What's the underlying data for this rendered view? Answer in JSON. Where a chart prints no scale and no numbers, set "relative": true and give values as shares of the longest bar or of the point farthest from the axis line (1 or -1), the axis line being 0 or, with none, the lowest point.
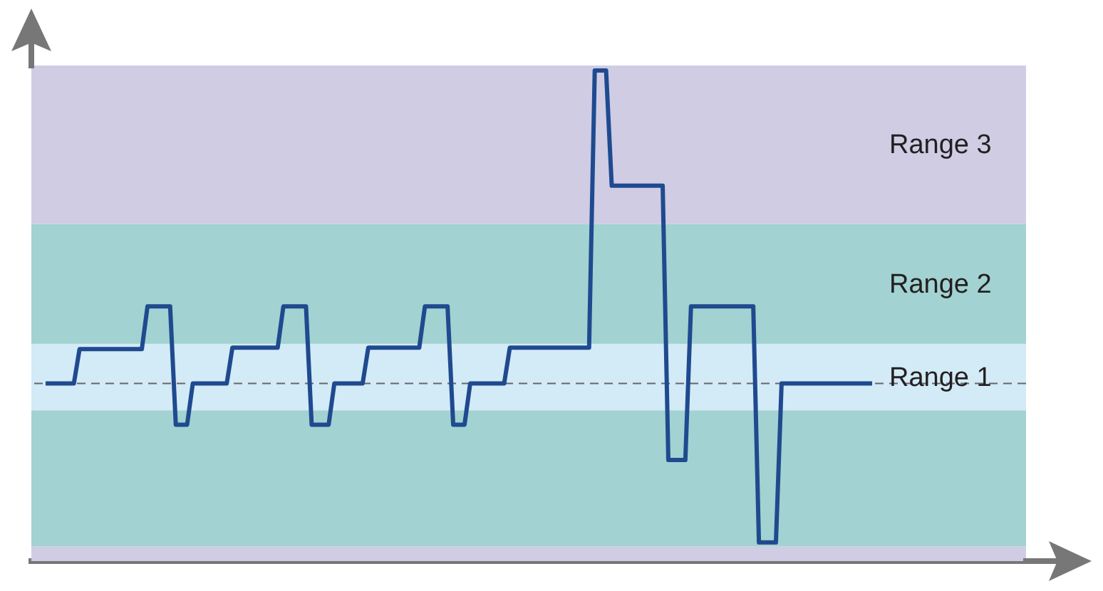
{
  "chart_data": {
    "type": "line",
    "relative": true,
    "categories": [
      null,
      null,
      null,
      null,
      null,
      null,
      null,
      null,
      null,
      null,
      null,
      null,
      null,
      null,
      null,
      null,
      null,
      null,
      null,
      null,
      null,
      null,
      null,
      null,
      null,
      null,
      null,
      null,
      null,
      null,
      null,
      null,
      null,
      null,
      null,
      null,
      null,
      null,
      null,
      null,
      null,
      null,
      null,
      null,
      null,
      null,
      null,
      null,
      null,
      null,
      null,
      null,
      null,
      null,
      null,
      null,
      null,
      null,
      null,
      null,
      null,
      null,
      null,
      null,
      null,
      null,
      null,
      null,
      null,
      null,
      null,
      null,
      null,
      null,
      null,
      null,
      null,
      null,
      null,
      null,
      null,
      null,
      null,
      null,
      null,
      null,
      null,
      null,
      null,
      null,
      null,
      null,
      null,
      null,
      null,
      null,
      null,
      null,
      null,
      null,
      null,
      null,
      null,
      null,
      null,
      null,
      null,
      null,
      null,
      null,
      null,
      null,
      null,
      null,
      null,
      null,
      null,
      null,
      null,
      null,
      null,
      null,
      null,
      null,
      null,
      null,
      null,
      null,
      null,
      null,
      null,
      null,
      null,
      null,
      null,
      null,
      null,
      null,
      null,
      null,
      null,
      null,
      null,
      null,
      null,
      null,
      null
    ],
    "series": [
      {
        "color": "#1f4a8f",
        "values": [
          0.362,
          0.362,
          0.362,
          0.362,
          0.362,
          0.362,
          0.432,
          0.432,
          0.432,
          0.432,
          0.432,
          0.432,
          0.432,
          0.432,
          0.432,
          0.432,
          0.432,
          0.432,
          0.519,
          0.519,
          0.519,
          0.519,
          0.519,
          0.278,
          0.278,
          0.278,
          0.362,
          0.362,
          0.362,
          0.362,
          0.362,
          0.362,
          0.362,
          0.435,
          0.435,
          0.435,
          0.435,
          0.435,
          0.435,
          0.435,
          0.435,
          0.435,
          0.519,
          0.519,
          0.519,
          0.519,
          0.519,
          0.278,
          0.278,
          0.278,
          0.278,
          0.362,
          0.362,
          0.362,
          0.362,
          0.362,
          0.362,
          0.435,
          0.435,
          0.435,
          0.435,
          0.435,
          0.435,
          0.435,
          0.435,
          0.435,
          0.435,
          0.519,
          0.519,
          0.519,
          0.519,
          0.519,
          0.278,
          0.278,
          0.278,
          0.362,
          0.362,
          0.362,
          0.362,
          0.362,
          0.362,
          0.362,
          0.435,
          0.435,
          0.435,
          0.435,
          0.435,
          0.435,
          0.435,
          0.435,
          0.435,
          0.435,
          0.435,
          0.435,
          0.435,
          0.435,
          0.435,
          1,
          1,
          1,
          0.765,
          0.765,
          0.765,
          0.765,
          0.765,
          0.765,
          0.765,
          0.765,
          0.765,
          0.765,
          0.206,
          0.206,
          0.206,
          0.206,
          0.519,
          0.519,
          0.519,
          0.519,
          0.519,
          0.519,
          0.519,
          0.519,
          0.519,
          0.519,
          0.519,
          0.519,
          0.038,
          0.038,
          0.038,
          0.038,
          0.362,
          0.362,
          0.362,
          0.362,
          0.362,
          0.362,
          0.362,
          0.362,
          0.362,
          0.362,
          0.362,
          0.362,
          0.362,
          0.362,
          0.362,
          0.362,
          0.362
        ]
      }
    ],
    "bands": [
      {
        "axis": "y",
        "from": 0,
        "to": 0.03,
        "label": null,
        "color": "#cfcce4"
      },
      {
        "axis": "y",
        "from": 0.03,
        "to": 0.687,
        "label": "Range 2",
        "color": "#a2d2d1"
      },
      {
        "axis": "y",
        "from": 0.687,
        "to": 1.01,
        "label": "Range 3",
        "color": "#cfcce4"
      },
      {
        "axis": "y",
        "from": 0.307,
        "to": 0.443,
        "label": "Range 1",
        "color": "#d3eaf7"
      }
    ],
    "ref_lines": [
      {
        "axis": "y",
        "value": 0.362,
        "label": null,
        "color": "#666666",
        "line_style": "dashed"
      }
    ]
  }
}
